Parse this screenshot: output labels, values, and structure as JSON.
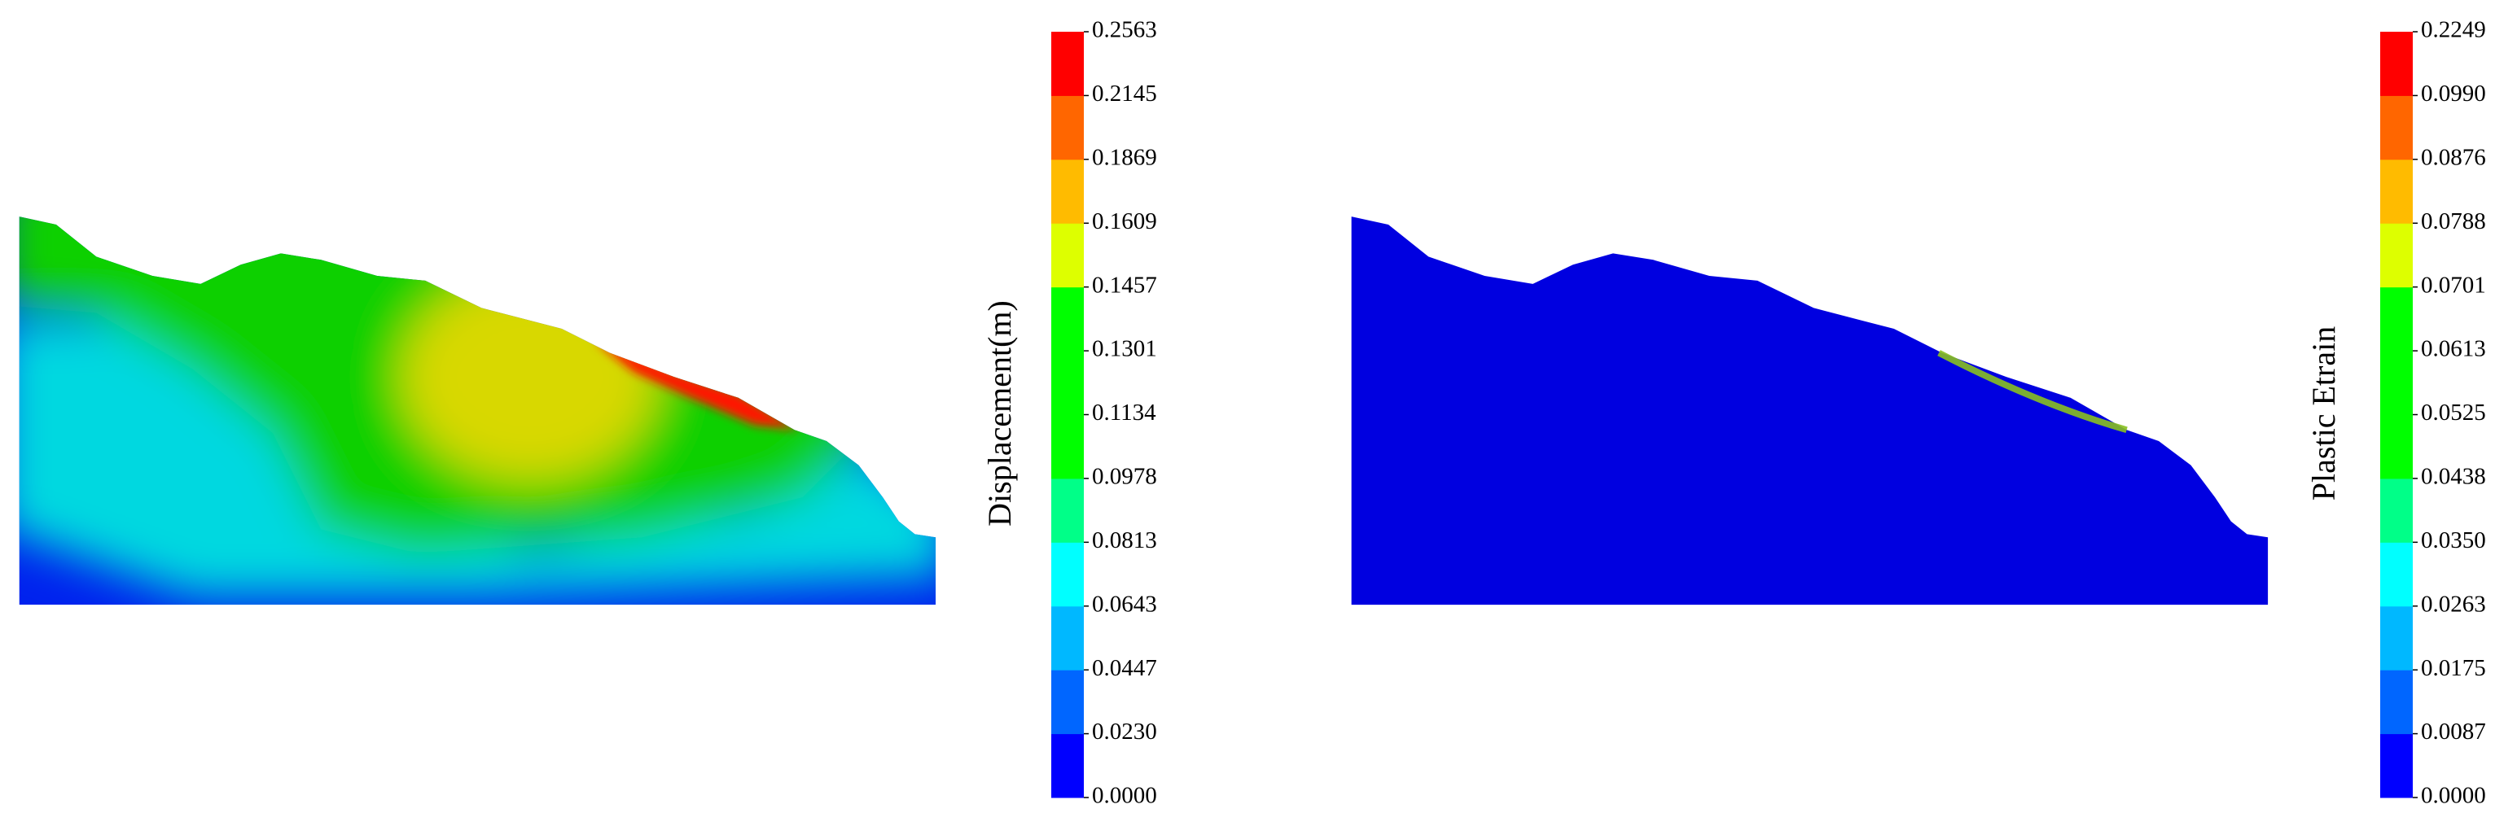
{
  "chart_data": [
    {
      "type": "contour",
      "colorbar_label": "Displacement(m)",
      "colorbar_ticks": [
        {
          "value": 0,
          "label": "0.0000"
        },
        {
          "value": 0.023,
          "label": "0.0230"
        },
        0.0447,
        0.0643,
        0.0813,
        0.0978,
        0.1134,
        0.1301,
        0.1457,
        0.1609,
        0.1869,
        0.2145,
        0.2563
      ],
      "colorbar_colors": [
        "#0000ff",
        "#0066ff",
        "#00b8ff",
        "#00ffff",
        "#00ff88",
        "#00ff00",
        "#00ff00",
        "#00ff00",
        "#ddff00",
        "#ffbb00",
        "#ff6600",
        "#ff0000"
      ]
    },
    {
      "type": "contour",
      "colorbar_label": "Plastic Etrain",
      "colorbar_ticks": [
        {
          "value": 0,
          "label": "0.0000"
        },
        0.0087,
        0.0175,
        0.0263,
        {
          "value": 0.035,
          "label": "0.0350"
        },
        0.0438,
        0.0525,
        0.0613,
        0.0701,
        0.0788,
        0.0876,
        {
          "value": 0.099,
          "label": "0.0990"
        },
        0.2249
      ],
      "colorbar_colors": [
        "#0000ff",
        "#0066ff",
        "#00b8ff",
        "#00ffff",
        "#00ff88",
        "#00ff00",
        "#00ff00",
        "#00ff00",
        "#ddff00",
        "#ffbb00",
        "#ff6600",
        "#ff0000"
      ]
    }
  ]
}
